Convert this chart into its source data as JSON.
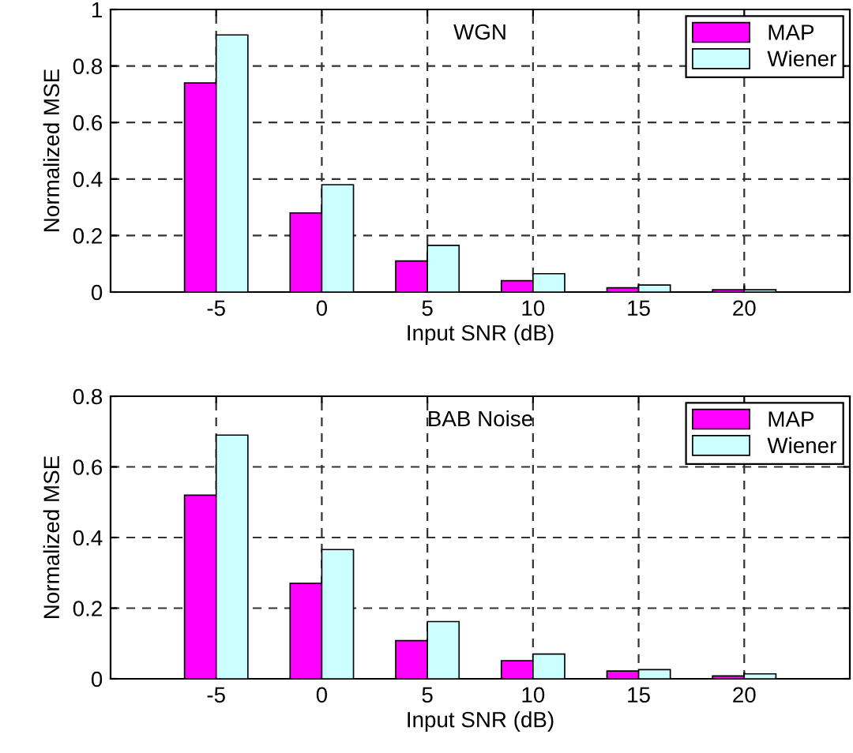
{
  "chart_data": [
    {
      "type": "bar",
      "title": "WGN",
      "xlabel": "Input SNR (dB)",
      "ylabel": "Normalized MSE",
      "x": [
        -5,
        0,
        5,
        10,
        15,
        20
      ],
      "series": [
        {
          "name": "MAP",
          "color": "#ff00ff",
          "values": [
            0.74,
            0.28,
            0.11,
            0.04,
            0.015,
            0.008
          ]
        },
        {
          "name": "Wiener",
          "color": "#ccffff",
          "values": [
            0.91,
            0.38,
            0.165,
            0.065,
            0.025,
            0.008
          ]
        }
      ],
      "xlim": [
        -10,
        25
      ],
      "xticks": [
        -5,
        0,
        5,
        10,
        15,
        20
      ],
      "ylim": [
        0,
        1
      ],
      "yticks": [
        0,
        0.2,
        0.4,
        0.6,
        0.8,
        1
      ],
      "grid": true,
      "legend": "top right"
    },
    {
      "type": "bar",
      "title": "BAB Noise",
      "xlabel": "Input SNR (dB)",
      "ylabel": "Normalized MSE",
      "x": [
        -5,
        0,
        5,
        10,
        15,
        20
      ],
      "series": [
        {
          "name": "MAP",
          "color": "#ff00ff",
          "values": [
            0.52,
            0.27,
            0.108,
            0.051,
            0.022,
            0.008
          ]
        },
        {
          "name": "Wiener",
          "color": "#ccffff",
          "values": [
            0.69,
            0.366,
            0.162,
            0.07,
            0.026,
            0.014
          ]
        }
      ],
      "xlim": [
        -10,
        25
      ],
      "xticks": [
        -5,
        0,
        5,
        10,
        15,
        20
      ],
      "ylim": [
        0,
        0.8
      ],
      "yticks": [
        0,
        0.2,
        0.4,
        0.6,
        0.8
      ],
      "grid": true,
      "legend": "top right"
    }
  ]
}
